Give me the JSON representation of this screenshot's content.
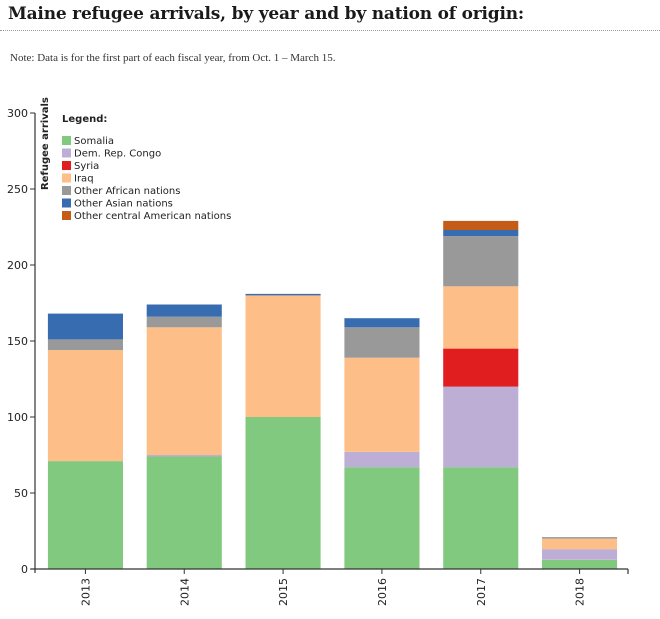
{
  "header": {
    "title": "Maine refugee arrivals, by year and by nation of origin:",
    "note": "Note: Data is for the first part of each fiscal year, from Oct. 1 – March 15."
  },
  "chart_data": {
    "type": "bar",
    "stacked": true,
    "title": "Maine refugee arrivals, by year and by nation of origin:",
    "subtitle": "Note: Data is for the first part of each fiscal year, from Oct. 1 – March 15.",
    "xlabel": "",
    "ylabel": "Refugee arrivals",
    "ylim": [
      0,
      300
    ],
    "yticks": [
      0,
      50,
      100,
      150,
      200,
      250,
      300
    ],
    "grid": false,
    "legend_title": "Legend:",
    "legend_position": "top-left",
    "categories": [
      "2013",
      "2014",
      "2015",
      "2016",
      "2017",
      "2018"
    ],
    "series": [
      {
        "name": "Somalia",
        "color": "#80c97e",
        "values": [
          71,
          74,
          100,
          67,
          67,
          6
        ]
      },
      {
        "name": "Dem. Rep. Congo",
        "color": "#bcaed4",
        "values": [
          0,
          1,
          0,
          10,
          53,
          7
        ]
      },
      {
        "name": "Syria",
        "color": "#e01d1f",
        "values": [
          0,
          0,
          0,
          0,
          25,
          0
        ]
      },
      {
        "name": "Iraq",
        "color": "#fdbf87",
        "values": [
          73,
          84,
          80,
          62,
          41,
          7
        ]
      },
      {
        "name": "Other African nations",
        "color": "#999999",
        "values": [
          7,
          7,
          0,
          20,
          33,
          1
        ]
      },
      {
        "name": "Other Asian nations",
        "color": "#386cb0",
        "values": [
          17,
          8,
          1,
          6,
          4,
          0
        ]
      },
      {
        "name": "Other central American nations",
        "color": "#c45b17",
        "values": [
          0,
          0,
          0,
          0,
          6,
          0
        ]
      }
    ]
  }
}
